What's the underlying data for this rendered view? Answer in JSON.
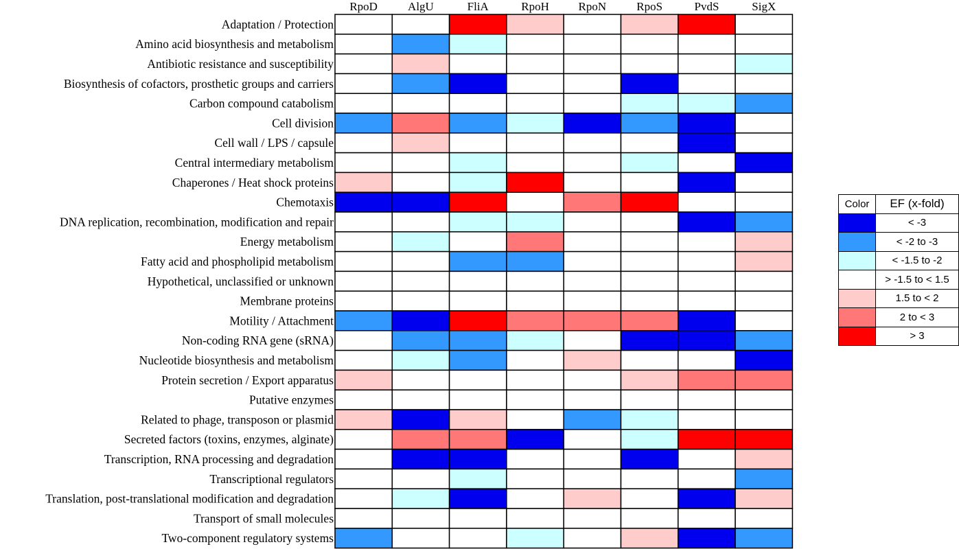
{
  "chart_data": {
    "type": "heatmap",
    "columns": [
      "RpoD",
      "AlgU",
      "FliA",
      "RpoH",
      "RpoN",
      "RpoS",
      "PvdS",
      "SigX"
    ],
    "rows": [
      "Adaptation / Protection",
      "Amino acid biosynthesis and metabolism",
      "Antibiotic resistance and susceptibility",
      "Biosynthesis of cofactors, prosthetic groups and carriers",
      "Carbon compound catabolism",
      "Cell division",
      "Cell wall / LPS / capsule",
      "Central intermediary metabolism",
      "Chaperones / Heat shock proteins",
      "Chemotaxis",
      "DNA replication, recombination, modification and repair",
      "Energy metabolism",
      "Fatty acid and phospholipid metabolism",
      "Hypothetical, unclassified or unknown",
      "Membrane proteins",
      "Motility / Attachment",
      "Non-coding RNA gene (sRNA)",
      "Nucleotide biosynthesis and metabolism",
      "Protein secretion / Export apparatus",
      "Putative enzymes",
      "Related to phage, transposon or plasmid",
      "Secreted factors (toxins, enzymes, alginate)",
      "Transcription, RNA processing and degradation",
      "Transcriptional regulators",
      "Translation, post-translational modification and degradation",
      "Transport of small molecules",
      "Two-component regulatory systems"
    ],
    "category_scale": [
      "< -3",
      "< -2 to -3",
      "< -1.5 to -2",
      "> -1.5 to < 1.5",
      "1.5 to < 2",
      "2 to < 3",
      "> 3"
    ],
    "values": [
      [
        3,
        3,
        6,
        4,
        3,
        4,
        6,
        3
      ],
      [
        3,
        1,
        2,
        3,
        3,
        3,
        3,
        3
      ],
      [
        3,
        4,
        3,
        3,
        3,
        3,
        3,
        2
      ],
      [
        3,
        1,
        0,
        3,
        3,
        0,
        3,
        3
      ],
      [
        3,
        3,
        3,
        3,
        3,
        2,
        2,
        1
      ],
      [
        1,
        5,
        1,
        2,
        0,
        1,
        0,
        3
      ],
      [
        3,
        4,
        3,
        3,
        3,
        3,
        0,
        3
      ],
      [
        3,
        3,
        2,
        3,
        3,
        2,
        3,
        0
      ],
      [
        4,
        3,
        2,
        6,
        3,
        3,
        0,
        3
      ],
      [
        0,
        0,
        6,
        3,
        5,
        6,
        3,
        3
      ],
      [
        3,
        3,
        2,
        2,
        3,
        3,
        0,
        1
      ],
      [
        3,
        2,
        3,
        5,
        3,
        3,
        3,
        4
      ],
      [
        3,
        3,
        1,
        1,
        3,
        3,
        3,
        4
      ],
      [
        3,
        3,
        3,
        3,
        3,
        3,
        3,
        3
      ],
      [
        3,
        3,
        3,
        3,
        3,
        3,
        3,
        3
      ],
      [
        1,
        0,
        6,
        5,
        5,
        5,
        0,
        3
      ],
      [
        3,
        1,
        1,
        2,
        3,
        0,
        0,
        1
      ],
      [
        3,
        2,
        1,
        3,
        4,
        3,
        3,
        0
      ],
      [
        4,
        3,
        3,
        3,
        3,
        4,
        5,
        5
      ],
      [
        3,
        3,
        3,
        3,
        3,
        3,
        3,
        3
      ],
      [
        4,
        0,
        4,
        3,
        1,
        2,
        3,
        3
      ],
      [
        3,
        5,
        5,
        0,
        3,
        2,
        6,
        6
      ],
      [
        3,
        0,
        0,
        3,
        3,
        0,
        3,
        4
      ],
      [
        3,
        3,
        2,
        3,
        3,
        3,
        3,
        1
      ],
      [
        3,
        2,
        0,
        3,
        4,
        3,
        0,
        4
      ],
      [
        3,
        3,
        3,
        3,
        3,
        3,
        3,
        3
      ],
      [
        1,
        3,
        3,
        2,
        3,
        4,
        0,
        1
      ]
    ],
    "colors": [
      "#0000ee",
      "#3399ff",
      "#ccffff",
      "#ffffff",
      "#ffcccc",
      "#ff7777",
      "#ff0000"
    ]
  },
  "legend": {
    "header_color": "Color",
    "header_ef": "EF (x-fold)",
    "entries": [
      {
        "label": "< -3",
        "color": "#0000ee"
      },
      {
        "label": "< -2 to -3",
        "color": "#3399ff"
      },
      {
        "label": "< -1.5 to -2",
        "color": "#ccffff"
      },
      {
        "label": "> -1.5 to < 1.5",
        "color": "#ffffff"
      },
      {
        "label": "1.5 to < 2",
        "color": "#ffcccc"
      },
      {
        "label": "2 to < 3",
        "color": "#ff7777"
      },
      {
        "label": "> 3",
        "color": "#ff0000"
      }
    ]
  }
}
